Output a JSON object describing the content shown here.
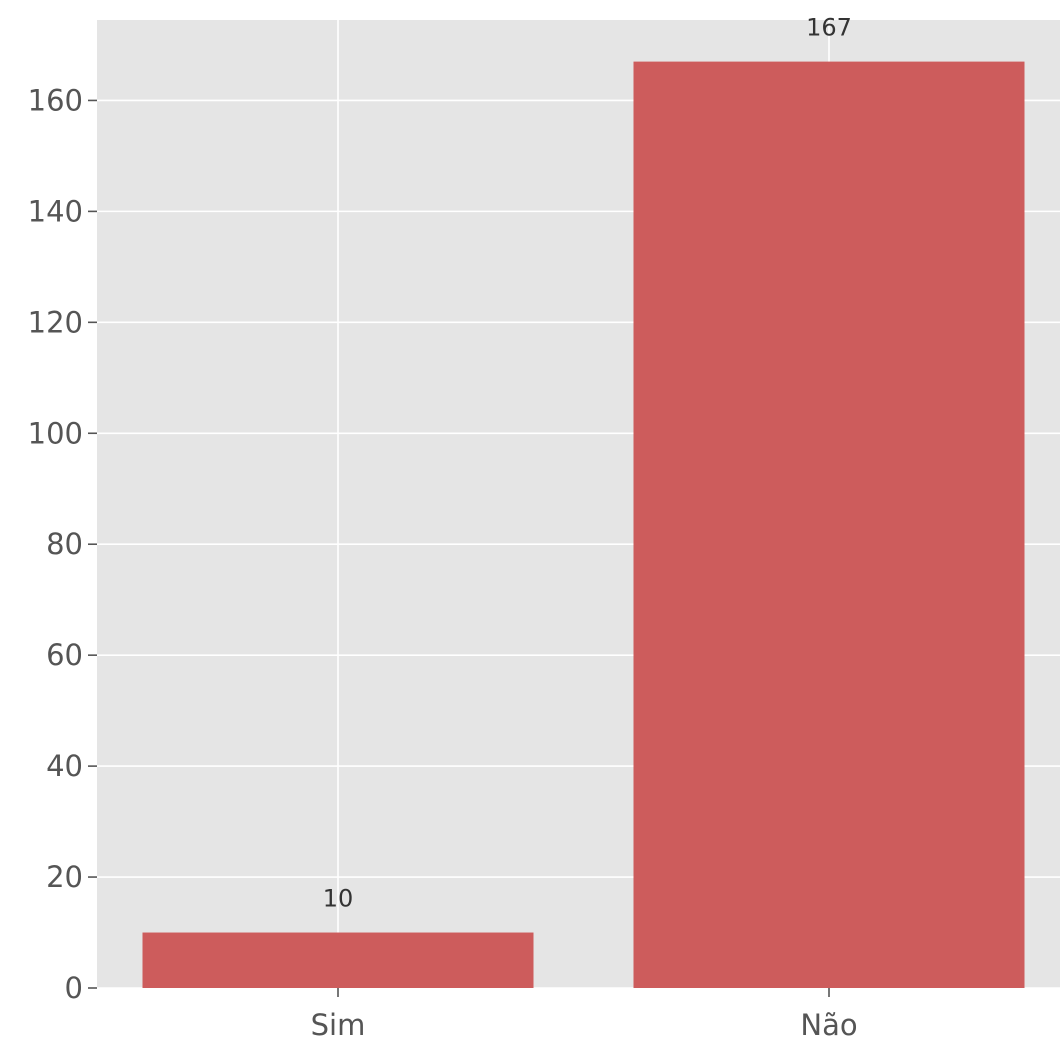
{
  "chart_data": {
    "type": "bar",
    "title": "",
    "xlabel": "",
    "ylabel": "",
    "categories": [
      "Sim",
      "Não"
    ],
    "values": [
      10,
      167
    ],
    "data_labels": [
      "10",
      "167"
    ],
    "ylim": [
      0,
      174.5
    ],
    "yticks": [
      0,
      20,
      40,
      60,
      80,
      100,
      120,
      140,
      160
    ],
    "ytick_labels": [
      "0",
      "20",
      "40",
      "60",
      "80",
      "100",
      "120",
      "140",
      "160"
    ],
    "grid": true,
    "legend": "none",
    "colors": {
      "bar": "#cd5c5c",
      "plot_background": "#e5e5e5",
      "grid": "#ffffff"
    }
  }
}
